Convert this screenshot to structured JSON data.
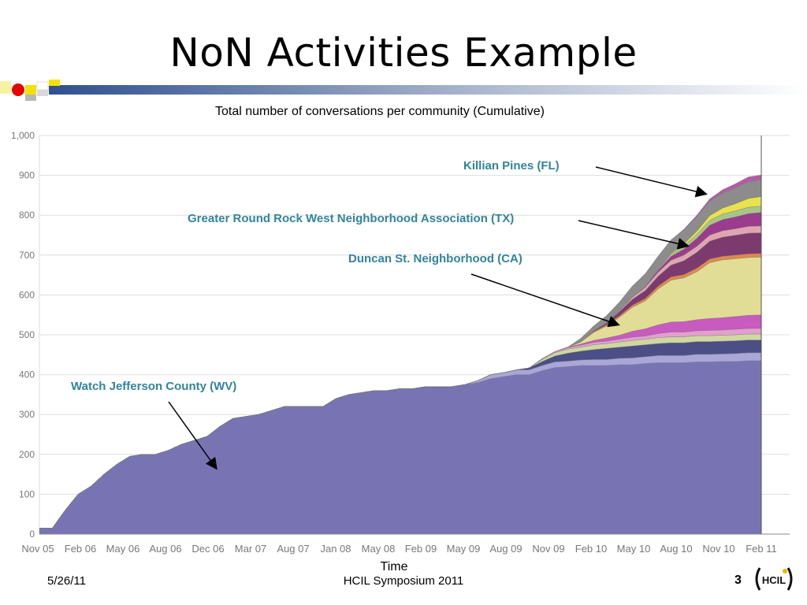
{
  "slide": {
    "title": "NoN Activities Example",
    "footer_date": "5/26/11",
    "footer_center": "HCIL Symposium 2011",
    "page_number": "3",
    "logo_text": "HCIL",
    "accent_color": "#4f6ba0"
  },
  "annotations": [
    {
      "label": "Killian Pines (FL)"
    },
    {
      "label": "Greater Round Rock West Neighborhood Association (TX)"
    },
    {
      "label": "Duncan St. Neighborhood (CA)"
    },
    {
      "label": "Watch Jefferson County (WV)"
    }
  ],
  "chart_data": {
    "type": "area",
    "stacked": true,
    "title": "Total number of conversations per community (Cumulative)",
    "xlabel": "Time",
    "ylabel": "",
    "ylim": [
      0,
      1000
    ],
    "yticks": [
      0,
      100,
      200,
      300,
      400,
      500,
      600,
      700,
      800,
      900,
      1000
    ],
    "ytick_labels": [
      "0",
      "100",
      "200",
      "300",
      "400",
      "500",
      "600",
      "700",
      "800",
      "900",
      "1,000"
    ],
    "grid": true,
    "x_tick_labels": [
      "Nov 05",
      "Feb 06",
      "May 06",
      "Aug 06",
      "Dec 06",
      "Mar 07",
      "Aug 07",
      "Jan 08",
      "May 08",
      "Feb 09",
      "May 09",
      "Aug 09",
      "Nov 09",
      "Feb 10",
      "May 10",
      "Aug 10",
      "Nov 10",
      "Feb 11"
    ],
    "x": [
      "Nov 05",
      "Dec 05",
      "Jan 06",
      "Feb 06",
      "Mar 06",
      "Apr 06",
      "May 06",
      "Jun 06",
      "Jul 06",
      "Aug 06",
      "Sep 06",
      "Oct 06",
      "Nov 06",
      "Dec 06",
      "Jan 07",
      "Feb 07",
      "Mar 07",
      "Apr 07",
      "May 07",
      "Jun 07",
      "Jul 07",
      "Aug 07",
      "Oct 07",
      "Nov 07",
      "Jan 08",
      "Mar 08",
      "Apr 08",
      "May 08",
      "Jul 08",
      "Sep 08",
      "Nov 08",
      "Feb 09",
      "Mar 09",
      "Apr 09",
      "May 09",
      "Jun 09",
      "Jul 09",
      "Aug 09",
      "Sep 09",
      "Oct 09",
      "Nov 09",
      "Dec 09",
      "Jan 10",
      "Feb 10",
      "Mar 10",
      "Apr 10",
      "May 10",
      "Jun 10",
      "Jul 10",
      "Aug 10",
      "Sep 10",
      "Oct 10",
      "Nov 10",
      "Dec 10",
      "Jan 11",
      "Feb 11",
      "Mar 11"
    ],
    "series": [
      {
        "name": "Watch Jefferson County (WV)",
        "color": "#7874b4",
        "values": [
          15,
          15,
          60,
          100,
          120,
          150,
          175,
          195,
          200,
          200,
          210,
          225,
          235,
          245,
          270,
          290,
          295,
          300,
          310,
          320,
          320,
          320,
          320,
          340,
          350,
          355,
          360,
          360,
          365,
          365,
          370,
          370,
          370,
          375,
          380,
          390,
          395,
          400,
          400,
          410,
          418,
          420,
          423,
          423,
          423,
          425,
          425,
          428,
          430,
          430,
          430,
          432,
          432,
          433,
          433,
          435,
          435
        ]
      },
      {
        "name": "",
        "color": "#a9a6d8",
        "values": [
          0,
          0,
          0,
          0,
          0,
          0,
          0,
          0,
          0,
          0,
          0,
          0,
          0,
          0,
          0,
          0,
          0,
          0,
          0,
          0,
          0,
          0,
          0,
          0,
          0,
          0,
          0,
          0,
          0,
          0,
          0,
          0,
          0,
          0,
          5,
          10,
          10,
          12,
          12,
          13,
          14,
          14,
          14,
          15,
          15,
          16,
          17,
          17,
          18,
          18,
          18,
          19,
          19,
          19,
          20,
          20,
          20
        ]
      },
      {
        "name": "",
        "color": "#4b4f86",
        "values": [
          0,
          0,
          0,
          0,
          0,
          0,
          0,
          0,
          0,
          0,
          0,
          0,
          0,
          0,
          0,
          0,
          0,
          0,
          0,
          0,
          0,
          0,
          0,
          0,
          0,
          0,
          0,
          0,
          0,
          0,
          0,
          0,
          0,
          0,
          0,
          0,
          0,
          0,
          5,
          10,
          15,
          20,
          22,
          25,
          28,
          28,
          30,
          30,
          30,
          32,
          32,
          32,
          32,
          32,
          32,
          32,
          32
        ]
      },
      {
        "name": "",
        "color": "#cfd8a0",
        "values": [
          0,
          0,
          0,
          0,
          0,
          0,
          0,
          0,
          0,
          0,
          0,
          0,
          0,
          0,
          0,
          0,
          0,
          0,
          0,
          0,
          0,
          0,
          0,
          0,
          0,
          0,
          0,
          0,
          0,
          0,
          0,
          0,
          0,
          0,
          0,
          0,
          0,
          0,
          0,
          5,
          8,
          10,
          10,
          12,
          12,
          13,
          14,
          14,
          15,
          15,
          15,
          15,
          15,
          15,
          15,
          15,
          15
        ]
      },
      {
        "name": "",
        "color": "#e39fcf",
        "values": [
          0,
          0,
          0,
          0,
          0,
          0,
          0,
          0,
          0,
          0,
          0,
          0,
          0,
          0,
          0,
          0,
          0,
          0,
          0,
          0,
          0,
          0,
          0,
          0,
          0,
          0,
          0,
          0,
          0,
          0,
          0,
          0,
          0,
          0,
          0,
          0,
          0,
          0,
          0,
          2,
          3,
          4,
          5,
          6,
          6,
          7,
          8,
          8,
          10,
          12,
          12,
          12,
          13,
          13,
          14,
          14,
          14
        ]
      },
      {
        "name": "",
        "color": "#c85ac0",
        "values": [
          0,
          0,
          0,
          0,
          0,
          0,
          0,
          0,
          0,
          0,
          0,
          0,
          0,
          0,
          0,
          0,
          0,
          0,
          0,
          0,
          0,
          0,
          0,
          0,
          0,
          0,
          0,
          0,
          0,
          0,
          0,
          0,
          0,
          0,
          0,
          0,
          0,
          0,
          0,
          0,
          0,
          1,
          3,
          5,
          8,
          10,
          15,
          18,
          22,
          25,
          26,
          28,
          30,
          31,
          32,
          33,
          34
        ]
      },
      {
        "name": "Duncan St. Neighborhood (CA)",
        "color": "#e2dd96",
        "values": [
          0,
          0,
          0,
          0,
          0,
          0,
          0,
          0,
          0,
          0,
          0,
          0,
          0,
          0,
          0,
          0,
          0,
          0,
          0,
          0,
          0,
          0,
          0,
          0,
          0,
          0,
          0,
          0,
          0,
          0,
          0,
          0,
          0,
          0,
          0,
          0,
          0,
          0,
          0,
          0,
          0,
          0,
          5,
          20,
          30,
          45,
          60,
          70,
          90,
          105,
          110,
          120,
          140,
          145,
          145,
          145,
          145
        ]
      },
      {
        "name": "",
        "color": "#e08a48",
        "values": [
          0,
          0,
          0,
          0,
          0,
          0,
          0,
          0,
          0,
          0,
          0,
          0,
          0,
          0,
          0,
          0,
          0,
          0,
          0,
          0,
          0,
          0,
          0,
          0,
          0,
          0,
          0,
          0,
          0,
          0,
          0,
          0,
          0,
          0,
          0,
          0,
          0,
          0,
          0,
          0,
          0,
          0,
          1,
          2,
          3,
          4,
          5,
          6,
          7,
          8,
          8,
          9,
          9,
          9,
          9,
          9,
          9
        ]
      },
      {
        "name": "Greater Round Rock West Neighborhood Association (TX)",
        "color": "#7d3a6e",
        "values": [
          0,
          0,
          0,
          0,
          0,
          0,
          0,
          0,
          0,
          0,
          0,
          0,
          0,
          0,
          0,
          0,
          0,
          0,
          0,
          0,
          0,
          0,
          0,
          0,
          0,
          0,
          0,
          0,
          0,
          0,
          0,
          0,
          0,
          0,
          0,
          0,
          0,
          0,
          0,
          0,
          0,
          0,
          0,
          2,
          5,
          10,
          15,
          20,
          25,
          30,
          35,
          40,
          45,
          48,
          50,
          52,
          52
        ]
      },
      {
        "name": "",
        "color": "#e0a6b0",
        "values": [
          0,
          0,
          0,
          0,
          0,
          0,
          0,
          0,
          0,
          0,
          0,
          0,
          0,
          0,
          0,
          0,
          0,
          0,
          0,
          0,
          0,
          0,
          0,
          0,
          0,
          0,
          0,
          0,
          0,
          0,
          0,
          0,
          0,
          0,
          0,
          0,
          0,
          0,
          0,
          0,
          0,
          0,
          0,
          0,
          0,
          2,
          5,
          8,
          10,
          12,
          14,
          15,
          15,
          16,
          16,
          17,
          17
        ]
      },
      {
        "name": "Killian Pines (FL)",
        "color": "#9b3c8c",
        "values": [
          0,
          0,
          0,
          0,
          0,
          0,
          0,
          0,
          0,
          0,
          0,
          0,
          0,
          0,
          0,
          0,
          0,
          0,
          0,
          0,
          0,
          0,
          0,
          0,
          0,
          0,
          0,
          0,
          0,
          0,
          0,
          0,
          0,
          0,
          0,
          0,
          0,
          0,
          0,
          0,
          0,
          0,
          0,
          0,
          0,
          0,
          0,
          2,
          5,
          10,
          15,
          20,
          25,
          28,
          30,
          32,
          34
        ]
      },
      {
        "name": "",
        "color": "#a9c58a",
        "values": [
          0,
          0,
          0,
          0,
          0,
          0,
          0,
          0,
          0,
          0,
          0,
          0,
          0,
          0,
          0,
          0,
          0,
          0,
          0,
          0,
          0,
          0,
          0,
          0,
          0,
          0,
          0,
          0,
          0,
          0,
          0,
          0,
          0,
          0,
          0,
          0,
          0,
          0,
          0,
          0,
          0,
          0,
          0,
          0,
          0,
          0,
          0,
          0,
          2,
          5,
          8,
          10,
          12,
          14,
          15,
          16,
          16
        ]
      },
      {
        "name": "",
        "color": "#e8e34a",
        "values": [
          0,
          0,
          0,
          0,
          0,
          0,
          0,
          0,
          0,
          0,
          0,
          0,
          0,
          0,
          0,
          0,
          0,
          0,
          0,
          0,
          0,
          0,
          0,
          0,
          0,
          0,
          0,
          0,
          0,
          0,
          0,
          0,
          0,
          0,
          0,
          0,
          0,
          0,
          0,
          0,
          0,
          0,
          0,
          0,
          0,
          0,
          0,
          0,
          0,
          2,
          5,
          8,
          12,
          15,
          18,
          22,
          24
        ]
      },
      {
        "name": "",
        "color": "#8c8c8c",
        "values": [
          0,
          0,
          0,
          0,
          0,
          0,
          0,
          0,
          0,
          0,
          0,
          0,
          0,
          0,
          0,
          0,
          0,
          0,
          0,
          0,
          0,
          0,
          0,
          0,
          0,
          0,
          0,
          0,
          0,
          0,
          0,
          0,
          0,
          0,
          0,
          0,
          0,
          0,
          0,
          0,
          0,
          0,
          8,
          12,
          18,
          22,
          28,
          32,
          33,
          34,
          35,
          36,
          36,
          38,
          40,
          42,
          42
        ]
      },
      {
        "name": "",
        "color": "#b45aa8",
        "values": [
          0,
          0,
          0,
          0,
          0,
          0,
          0,
          0,
          0,
          0,
          0,
          0,
          0,
          0,
          0,
          0,
          0,
          0,
          0,
          0,
          0,
          0,
          0,
          0,
          0,
          0,
          0,
          0,
          0,
          0,
          0,
          0,
          0,
          0,
          0,
          0,
          0,
          0,
          0,
          0,
          0,
          0,
          0,
          0,
          0,
          0,
          0,
          0,
          0,
          0,
          2,
          4,
          6,
          8,
          10,
          12,
          12
        ]
      }
    ]
  }
}
